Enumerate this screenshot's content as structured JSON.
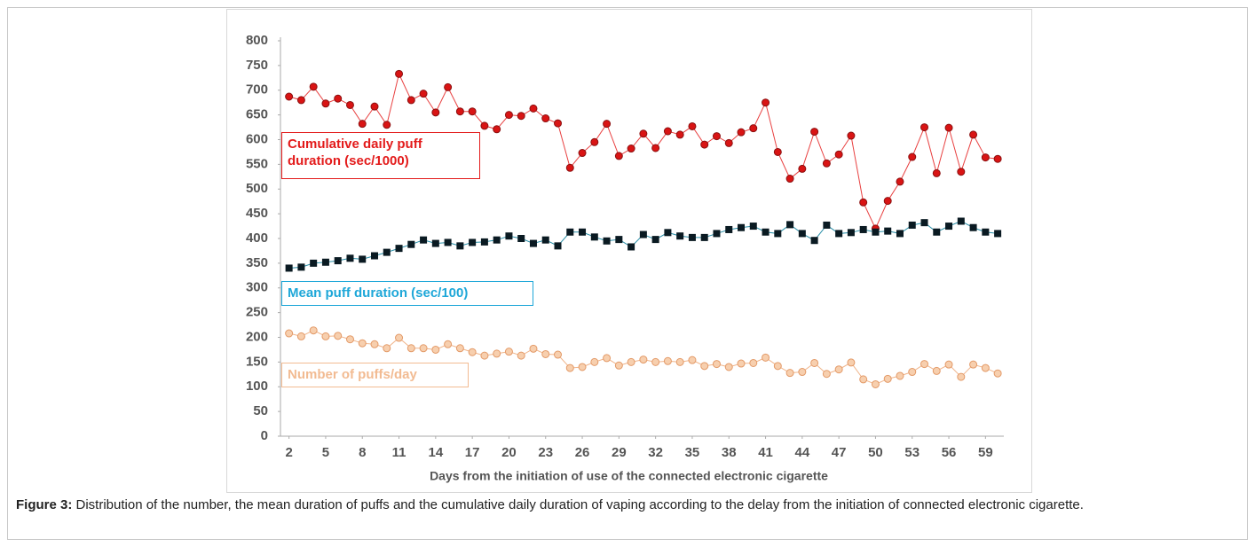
{
  "chart_data": {
    "type": "line",
    "xlabel": "Days  from the initiation of use of the connected electronic cigarette",
    "x": [
      2,
      3,
      4,
      5,
      6,
      7,
      8,
      9,
      10,
      11,
      12,
      13,
      14,
      15,
      16,
      17,
      18,
      19,
      20,
      21,
      22,
      23,
      24,
      25,
      26,
      27,
      28,
      29,
      30,
      31,
      32,
      33,
      34,
      35,
      36,
      37,
      38,
      39,
      40,
      41,
      42,
      43,
      44,
      45,
      46,
      47,
      48,
      49,
      50,
      51,
      52,
      53,
      54,
      55,
      56,
      57,
      58,
      59,
      60
    ],
    "xlim": [
      1.3,
      60.5
    ],
    "xticks": [
      2,
      5,
      8,
      11,
      14,
      17,
      20,
      23,
      26,
      29,
      32,
      35,
      38,
      41,
      44,
      47,
      50,
      53,
      56,
      59
    ],
    "ylim": [
      0,
      800
    ],
    "yticks": [
      0,
      50,
      100,
      150,
      200,
      250,
      300,
      350,
      400,
      450,
      500,
      550,
      600,
      650,
      700,
      750,
      800
    ],
    "grid": false,
    "series": [
      {
        "name": "Cumulative daily puff duration (sec/1000)",
        "color": "#e31b1b",
        "line_color": "#e84040",
        "marker": "circle",
        "marker_color": "#d91414",
        "marker_stroke": "#8b1010",
        "values": [
          687,
          680,
          707,
          673,
          683,
          670,
          632,
          667,
          630,
          733,
          680,
          693,
          655,
          706,
          657,
          657,
          628,
          621,
          650,
          648,
          663,
          643,
          633,
          543,
          573,
          595,
          632,
          567,
          582,
          612,
          583,
          617,
          610,
          627,
          590,
          607,
          593,
          615,
          623,
          675,
          575,
          521,
          541,
          616,
          552,
          570,
          608,
          473,
          420,
          476,
          515,
          565,
          625,
          532,
          624,
          535,
          610,
          564,
          561
        ]
      },
      {
        "name": "Mean puff duration (sec/100)",
        "color": "#1ea7d8",
        "line_color": "#2a8fa8",
        "marker": "square",
        "marker_color": "#0a1a22",
        "marker_stroke": "#0a1a22",
        "values": [
          340,
          342,
          350,
          352,
          355,
          360,
          358,
          365,
          372,
          380,
          388,
          397,
          390,
          392,
          385,
          392,
          393,
          397,
          405,
          400,
          390,
          397,
          385,
          413,
          413,
          403,
          395,
          398,
          383,
          408,
          398,
          412,
          405,
          402,
          402,
          410,
          418,
          422,
          425,
          413,
          410,
          428,
          410,
          396,
          427,
          410,
          412,
          418,
          413,
          415,
          410,
          427,
          432,
          413,
          425,
          435,
          422,
          413,
          410
        ]
      },
      {
        "name": "Number of puffs/day",
        "color": "#f2bb92",
        "line_color": "#f0b48a",
        "marker": "circle",
        "marker_color": "#f7cfae",
        "marker_stroke": "#e39a68",
        "values": [
          208,
          202,
          214,
          202,
          203,
          196,
          188,
          186,
          178,
          199,
          178,
          178,
          175,
          186,
          178,
          170,
          163,
          167,
          171,
          163,
          177,
          166,
          165,
          138,
          140,
          150,
          158,
          143,
          150,
          155,
          150,
          152,
          150,
          154,
          142,
          146,
          140,
          147,
          148,
          159,
          142,
          128,
          130,
          148,
          126,
          135,
          149,
          115,
          105,
          116,
          122,
          130,
          146,
          132,
          145,
          120,
          145,
          138,
          127
        ]
      }
    ]
  },
  "caption": {
    "label": "Figure 3:",
    "text": "Distribution of the number, the mean duration of puffs and the cumulative daily duration of vaping according to the delay from the initiation of connected electronic cigarette."
  }
}
